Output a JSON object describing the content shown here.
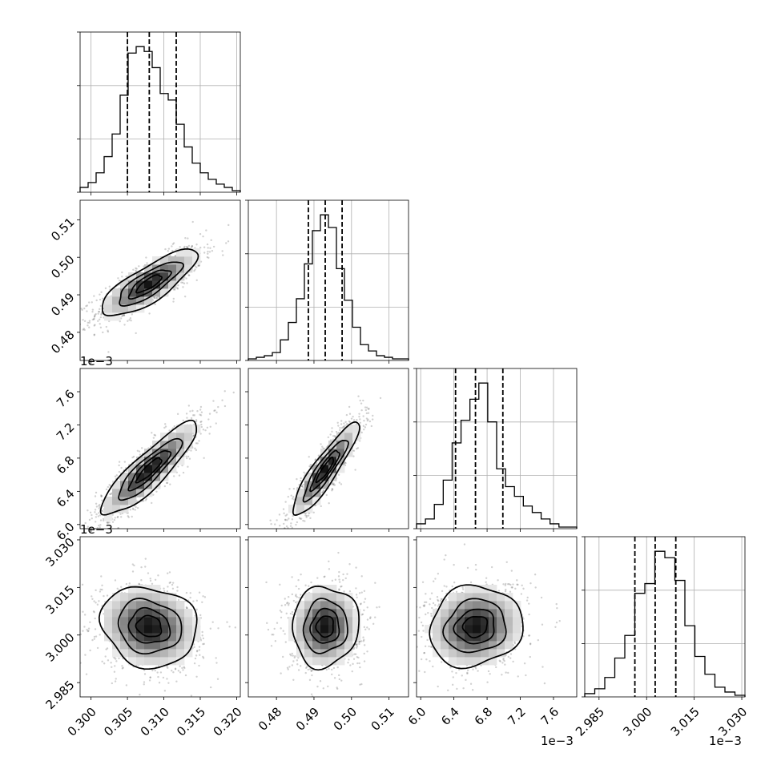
{
  "chart_data": {
    "type": "corner",
    "parameters": [
      {
        "range": [
          0.2985,
          0.3205
        ],
        "ticks": [
          "0.300",
          "0.305",
          "0.310",
          "0.315",
          "0.320"
        ],
        "tick_values": [
          0.3,
          0.305,
          0.31,
          0.315,
          0.32
        ],
        "offset_label": "",
        "quantiles": [
          0.305,
          0.308,
          0.3117
        ]
      },
      {
        "range": [
          0.4725,
          0.5152
        ],
        "ticks": [
          "0.48",
          "0.49",
          "0.50",
          "0.51"
        ],
        "tick_values": [
          0.48,
          0.49,
          0.5,
          0.51
        ],
        "offset_label": "",
        "quantiles": [
          0.4885,
          0.493,
          0.4975
        ]
      },
      {
        "range": [
          5.95,
          7.88
        ],
        "ticks": [
          "6.0",
          "6.4",
          "6.8",
          "7.2",
          "7.6"
        ],
        "tick_values": [
          6.0,
          6.4,
          6.8,
          7.2,
          7.6
        ],
        "offset_label": "1e−3",
        "quantiles": [
          6.42,
          6.66,
          6.99
        ]
      },
      {
        "range": [
          2.9805,
          3.031
        ],
        "ticks": [
          "2.985",
          "3.000",
          "3.015",
          "3.030"
        ],
        "tick_values": [
          2.985,
          3.0,
          3.015,
          3.03
        ],
        "offset_label": "1e−3",
        "quantiles": [
          2.9963,
          3.0027,
          3.0092
        ]
      }
    ],
    "histograms": [
      [
        3,
        6,
        12,
        22,
        36,
        60,
        86,
        90,
        87,
        77,
        61,
        57,
        42,
        28,
        18,
        12,
        8,
        5,
        3,
        1
      ],
      [
        1,
        2,
        3,
        5,
        13,
        24,
        39,
        61,
        82,
        92,
        84,
        58,
        38,
        21,
        10,
        6,
        3,
        2,
        1,
        1
      ],
      [
        3,
        6,
        15,
        30,
        53,
        67,
        80,
        90,
        66,
        37,
        26,
        20,
        14,
        10,
        6,
        3,
        1,
        1
      ],
      [
        2,
        5,
        12,
        24,
        38,
        64,
        70,
        90,
        86,
        72,
        44,
        25,
        14,
        6,
        3,
        1
      ]
    ],
    "pairs": [
      {
        "x": 0,
        "y": 1,
        "rho": 0.8
      },
      {
        "x": 0,
        "y": 2,
        "rho": 0.88
      },
      {
        "x": 1,
        "y": 2,
        "rho": 0.9
      },
      {
        "x": 0,
        "y": 3,
        "rho": -0.12
      },
      {
        "x": 1,
        "y": 3,
        "rho": 0.05
      },
      {
        "x": 2,
        "y": 3,
        "rho": 0.1
      }
    ],
    "contour_levels_sigma": [
      0.5,
      1.0,
      1.5,
      2.0
    ],
    "grid": true
  }
}
